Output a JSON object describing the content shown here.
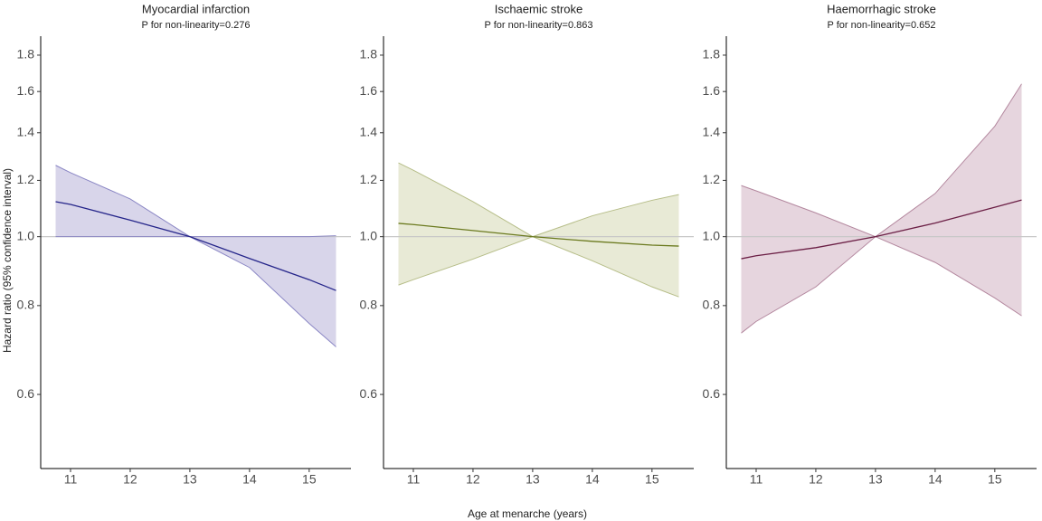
{
  "ylabel": "Hazard ratio (95% confidence interval)",
  "xlabel": "Age at menarche (years)",
  "chart_data": [
    {
      "type": "line",
      "title": "Myocardial infarction",
      "subtitle": "P for non-linearity=0.276",
      "x": [
        10.75,
        11,
        12,
        13,
        14,
        15,
        15.45
      ],
      "series": [
        {
          "color": "#25258a",
          "band_color": "#d8d5ea",
          "band_edge": "#8a86c4",
          "values": [
            1.12,
            1.11,
            1.055,
            1.0,
            0.932,
            0.87,
            0.84
          ],
          "upper": [
            1.26,
            1.23,
            1.13,
            1.0,
            1.0,
            1.0,
            1.003
          ],
          "lower": [
            1.0,
            1.0,
            1.0,
            1.0,
            0.905,
            0.755,
            0.7
          ]
        }
      ],
      "reference_line": 1,
      "xlim": [
        10.5,
        15.7
      ],
      "xticks": [
        11,
        12,
        13,
        14,
        15
      ],
      "ylim": [
        0.472,
        1.914
      ],
      "log_y": true,
      "yticks": [
        0.6,
        0.8,
        {
          "value": 1,
          "label": "1.0"
        },
        1.2,
        1.4,
        1.6,
        1.8
      ]
    },
    {
      "type": "line",
      "title": "Ischaemic stroke",
      "subtitle": "P for non-linearity=0.863",
      "x": [
        10.75,
        11,
        12,
        13,
        14,
        15,
        15.45
      ],
      "series": [
        {
          "color": "#6b7a1f",
          "band_color": "#e8ead6",
          "band_edge": "#b6bd88",
          "values": [
            1.044,
            1.04,
            1.02,
            1.0,
            0.985,
            0.973,
            0.97
          ],
          "upper": [
            1.27,
            1.24,
            1.12,
            1.0,
            1.07,
            1.125,
            1.146
          ],
          "lower": [
            0.855,
            0.87,
            0.93,
            1.0,
            0.925,
            0.85,
            0.823
          ]
        }
      ],
      "reference_line": 1,
      "xlim": [
        10.5,
        15.7
      ],
      "xticks": [
        11,
        12,
        13,
        14,
        15
      ],
      "ylim": [
        0.472,
        1.914
      ],
      "log_y": true,
      "yticks": [
        0.6,
        0.8,
        {
          "value": 1,
          "label": "1.0"
        },
        1.2,
        1.4,
        1.6,
        1.8
      ]
    },
    {
      "type": "line",
      "title": "Haemorrhagic stroke",
      "subtitle": "P for non-linearity=0.652",
      "x": [
        10.75,
        11,
        12,
        13,
        14,
        15,
        15.45
      ],
      "series": [
        {
          "color": "#6b1f45",
          "band_color": "#e6d5de",
          "band_edge": "#b3879e",
          "values": [
            0.931,
            0.94,
            0.965,
            1.0,
            1.045,
            1.1,
            1.126
          ],
          "upper": [
            1.18,
            1.16,
            1.08,
            1.0,
            1.15,
            1.43,
            1.64
          ],
          "lower": [
            0.732,
            0.76,
            0.85,
            1.0,
            0.92,
            0.82,
            0.774
          ]
        }
      ],
      "reference_line": 1,
      "xlim": [
        10.5,
        15.7
      ],
      "xticks": [
        11,
        12,
        13,
        14,
        15
      ],
      "ylim": [
        0.472,
        1.914
      ],
      "log_y": true,
      "yticks": [
        0.6,
        0.8,
        {
          "value": 1,
          "label": "1.0"
        },
        1.2,
        1.4,
        1.6,
        1.8
      ]
    }
  ]
}
